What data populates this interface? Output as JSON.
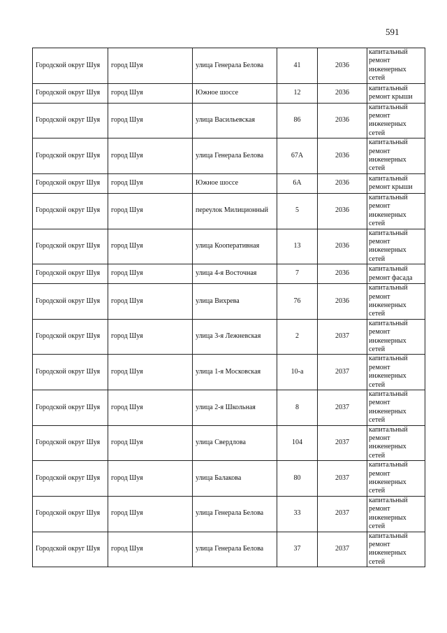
{
  "page_number": "591",
  "rows": [
    {
      "district": "Городской округ Шуя",
      "city": "город Шуя",
      "street": "улица Генерала Белова",
      "house": "41",
      "year": "2036",
      "work": "капитальный ремонт инженерных сетей"
    },
    {
      "district": "Городской округ Шуя",
      "city": "город Шуя",
      "street": "Южное шоссе",
      "house": "12",
      "year": "2036",
      "work": "капитальный ремонт крыши"
    },
    {
      "district": "Городской округ Шуя",
      "city": "город Шуя",
      "street": "улица Васильевская",
      "house": "86",
      "year": "2036",
      "work": "капитальный ремонт инженерных сетей"
    },
    {
      "district": "Городской округ Шуя",
      "city": "город Шуя",
      "street": "улица Генерала Белова",
      "house": "67А",
      "year": "2036",
      "work": "капитальный ремонт инженерных сетей"
    },
    {
      "district": "Городской округ Шуя",
      "city": "город Шуя",
      "street": "Южное шоссе",
      "house": "6А",
      "year": "2036",
      "work": "капитальный ремонт крыши"
    },
    {
      "district": "Городской округ Шуя",
      "city": "город Шуя",
      "street": "переулок Милиционный",
      "house": "5",
      "year": "2036",
      "work": "капитальный ремонт инженерных сетей"
    },
    {
      "district": "Городской округ Шуя",
      "city": "город Шуя",
      "street": "улица Кооперативная",
      "house": "13",
      "year": "2036",
      "work": "капитальный ремонт инженерных сетей"
    },
    {
      "district": "Городской округ Шуя",
      "city": "город Шуя",
      "street": "улица 4-я Восточная",
      "house": "7",
      "year": "2036",
      "work": "капитальный ремонт фасада"
    },
    {
      "district": "Городской округ Шуя",
      "city": "город Шуя",
      "street": "улица Вихрева",
      "house": "76",
      "year": "2036",
      "work": "капитальный ремонт инженерных сетей"
    },
    {
      "district": "Городской округ Шуя",
      "city": "город Шуя",
      "street": "улица 3-я Лежневская",
      "house": "2",
      "year": "2037",
      "work": "капитальный ремонт инженерных сетей"
    },
    {
      "district": "Городской округ Шуя",
      "city": "город Шуя",
      "street": "улица 1-я Московская",
      "house": "10-а",
      "year": "2037",
      "work": "капитальный ремонт инженерных сетей"
    },
    {
      "district": "Городской округ Шуя",
      "city": "город Шуя",
      "street": "улица 2-я Школьная",
      "house": "8",
      "year": "2037",
      "work": "капитальный ремонт инженерных сетей"
    },
    {
      "district": "Городской округ Шуя",
      "city": "город Шуя",
      "street": "улица Свердлова",
      "house": "104",
      "year": "2037",
      "work": "капитальный ремонт инженерных сетей"
    },
    {
      "district": "Городской округ Шуя",
      "city": "город Шуя",
      "street": "улица Балакова",
      "house": "80",
      "year": "2037",
      "work": "капитальный ремонт инженерных сетей"
    },
    {
      "district": "Городской округ Шуя",
      "city": "город Шуя",
      "street": "улица Генерала Белова",
      "house": "33",
      "year": "2037",
      "work": "капитальный ремонт инженерных сетей"
    },
    {
      "district": "Городской округ Шуя",
      "city": "город Шуя",
      "street": "улица Генерала Белова",
      "house": "37",
      "year": "2037",
      "work": "капитальный ремонт инженерных сетей"
    }
  ]
}
